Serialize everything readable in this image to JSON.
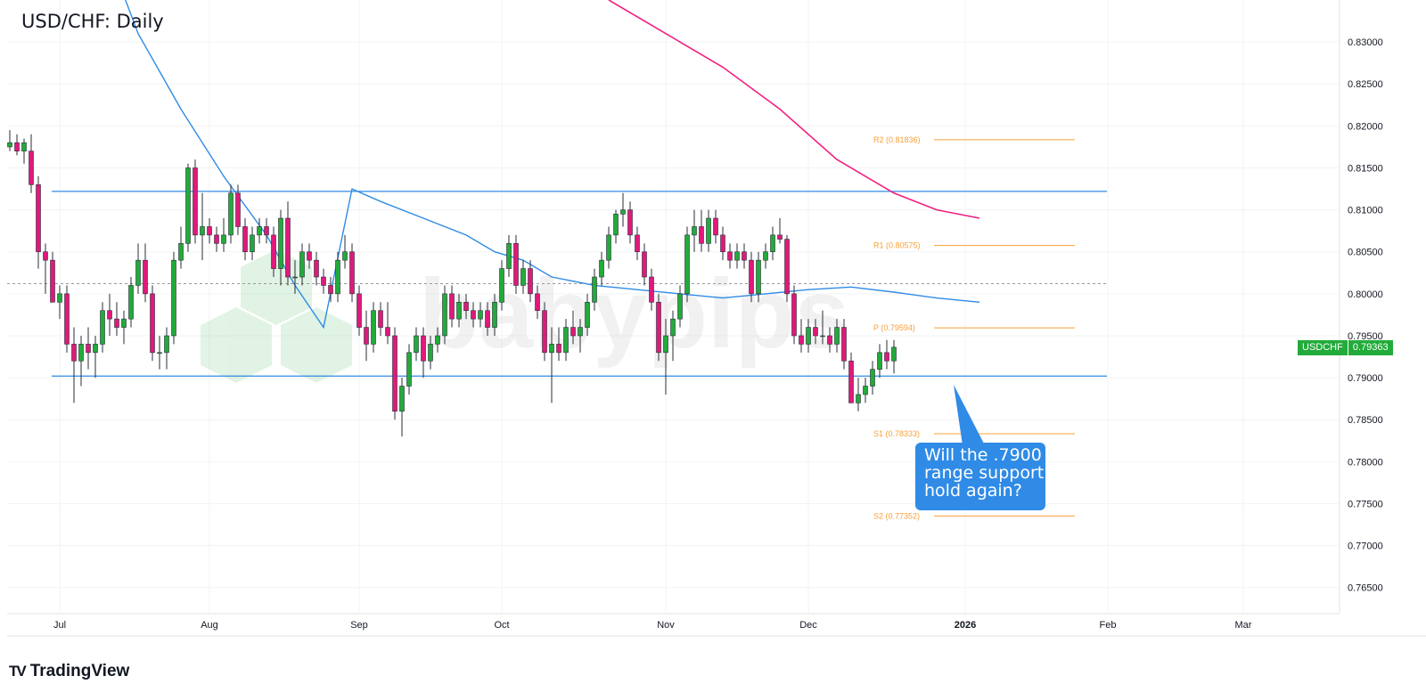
{
  "header": {
    "title": "USD/CHF: Daily"
  },
  "callout": {
    "line1": "Will the .7900",
    "line2": "range support",
    "line3": "hold again?"
  },
  "price_tag": {
    "symbol": "USDCHF",
    "value": "0.79363"
  },
  "footer": {
    "brand": "TradingView",
    "logo": "TV"
  },
  "colors": {
    "bull": "#22ab3a",
    "bear": "#e0197a",
    "ma_blue": "#2f8be6",
    "ma_pink": "#f2207e",
    "range": "#2f8be6",
    "pivot": "#f7a03a",
    "grid": "#f2f3f5",
    "axis_text": "#131722"
  },
  "chart_data": {
    "type": "candlestick",
    "title": "USD/CHF: Daily",
    "y_ticks": [
      "0.83000",
      "0.82500",
      "0.82000",
      "0.81500",
      "0.81000",
      "0.80500",
      "0.80000",
      "0.79500",
      "0.79000",
      "0.78500",
      "0.78000",
      "0.77500",
      "0.77000",
      "0.76500"
    ],
    "x_ticks": [
      {
        "label": "Jul",
        "bold": false,
        "index": 7
      },
      {
        "label": "Aug",
        "bold": false,
        "index": 28
      },
      {
        "label": "Sep",
        "bold": false,
        "index": 49
      },
      {
        "label": "Oct",
        "bold": false,
        "index": 69
      },
      {
        "label": "Nov",
        "bold": false,
        "index": 92
      },
      {
        "label": "Dec",
        "bold": false,
        "index": 112
      },
      {
        "label": "2026",
        "bold": true,
        "index": 134
      },
      {
        "label": "Feb",
        "bold": false,
        "index": 154
      },
      {
        "label": "Mar",
        "bold": false,
        "index": 173
      }
    ],
    "ylim": [
      0.762,
      0.835
    ],
    "candles": [
      [
        0.8175,
        0.8195,
        0.817,
        0.818
      ],
      [
        0.818,
        0.819,
        0.8165,
        0.817
      ],
      [
        0.817,
        0.8185,
        0.8155,
        0.818
      ],
      [
        0.817,
        0.819,
        0.812,
        0.813
      ],
      [
        0.813,
        0.814,
        0.803,
        0.805
      ],
      [
        0.805,
        0.806,
        0.8,
        0.804
      ],
      [
        0.804,
        0.805,
        0.799,
        0.799
      ],
      [
        0.799,
        0.801,
        0.797,
        0.8
      ],
      [
        0.8,
        0.801,
        0.793,
        0.794
      ],
      [
        0.794,
        0.796,
        0.787,
        0.792
      ],
      [
        0.792,
        0.795,
        0.789,
        0.794
      ],
      [
        0.794,
        0.796,
        0.791,
        0.793
      ],
      [
        0.793,
        0.795,
        0.79,
        0.794
      ],
      [
        0.794,
        0.799,
        0.793,
        0.798
      ],
      [
        0.798,
        0.8,
        0.795,
        0.797
      ],
      [
        0.797,
        0.799,
        0.795,
        0.796
      ],
      [
        0.796,
        0.798,
        0.794,
        0.797
      ],
      [
        0.797,
        0.802,
        0.796,
        0.801
      ],
      [
        0.801,
        0.806,
        0.8,
        0.804
      ],
      [
        0.804,
        0.806,
        0.799,
        0.8
      ],
      [
        0.8,
        0.801,
        0.792,
        0.793
      ],
      [
        0.793,
        0.795,
        0.791,
        0.793
      ],
      [
        0.793,
        0.796,
        0.791,
        0.795
      ],
      [
        0.795,
        0.805,
        0.794,
        0.804
      ],
      [
        0.804,
        0.808,
        0.803,
        0.806
      ],
      [
        0.806,
        0.8155,
        0.805,
        0.815
      ],
      [
        0.815,
        0.816,
        0.806,
        0.807
      ],
      [
        0.807,
        0.812,
        0.804,
        0.808
      ],
      [
        0.808,
        0.809,
        0.806,
        0.807
      ],
      [
        0.807,
        0.808,
        0.805,
        0.806
      ],
      [
        0.806,
        0.809,
        0.805,
        0.807
      ],
      [
        0.807,
        0.813,
        0.806,
        0.812
      ],
      [
        0.812,
        0.813,
        0.807,
        0.808
      ],
      [
        0.808,
        0.809,
        0.804,
        0.805
      ],
      [
        0.805,
        0.808,
        0.804,
        0.807
      ],
      [
        0.807,
        0.809,
        0.806,
        0.808
      ],
      [
        0.808,
        0.809,
        0.806,
        0.807
      ],
      [
        0.807,
        0.808,
        0.802,
        0.803
      ],
      [
        0.803,
        0.81,
        0.801,
        0.809
      ],
      [
        0.809,
        0.811,
        0.801,
        0.802
      ],
      [
        0.802,
        0.804,
        0.8,
        0.802
      ],
      [
        0.802,
        0.806,
        0.801,
        0.805
      ],
      [
        0.805,
        0.806,
        0.803,
        0.804
      ],
      [
        0.804,
        0.805,
        0.801,
        0.802
      ],
      [
        0.802,
        0.803,
        0.8,
        0.801
      ],
      [
        0.801,
        0.802,
        0.799,
        0.8
      ],
      [
        0.8,
        0.805,
        0.799,
        0.804
      ],
      [
        0.804,
        0.807,
        0.803,
        0.805
      ],
      [
        0.805,
        0.806,
        0.799,
        0.8
      ],
      [
        0.8,
        0.801,
        0.795,
        0.796
      ],
      [
        0.796,
        0.798,
        0.792,
        0.794
      ],
      [
        0.794,
        0.799,
        0.793,
        0.798
      ],
      [
        0.798,
        0.799,
        0.795,
        0.796
      ],
      [
        0.796,
        0.799,
        0.794,
        0.795
      ],
      [
        0.795,
        0.796,
        0.785,
        0.786
      ],
      [
        0.786,
        0.79,
        0.783,
        0.789
      ],
      [
        0.789,
        0.794,
        0.788,
        0.793
      ],
      [
        0.793,
        0.796,
        0.792,
        0.795
      ],
      [
        0.795,
        0.796,
        0.79,
        0.792
      ],
      [
        0.792,
        0.795,
        0.791,
        0.794
      ],
      [
        0.794,
        0.796,
        0.793,
        0.795
      ],
      [
        0.795,
        0.801,
        0.794,
        0.8
      ],
      [
        0.8,
        0.801,
        0.796,
        0.797
      ],
      [
        0.797,
        0.8,
        0.796,
        0.799
      ],
      [
        0.799,
        0.8,
        0.797,
        0.798
      ],
      [
        0.798,
        0.799,
        0.796,
        0.797
      ],
      [
        0.797,
        0.799,
        0.796,
        0.798
      ],
      [
        0.798,
        0.799,
        0.795,
        0.796
      ],
      [
        0.796,
        0.8,
        0.795,
        0.799
      ],
      [
        0.799,
        0.804,
        0.798,
        0.803
      ],
      [
        0.803,
        0.807,
        0.802,
        0.806
      ],
      [
        0.806,
        0.807,
        0.8,
        0.801
      ],
      [
        0.801,
        0.804,
        0.8,
        0.803
      ],
      [
        0.803,
        0.804,
        0.799,
        0.8
      ],
      [
        0.8,
        0.801,
        0.797,
        0.798
      ],
      [
        0.798,
        0.799,
        0.792,
        0.793
      ],
      [
        0.793,
        0.796,
        0.787,
        0.794
      ],
      [
        0.794,
        0.796,
        0.792,
        0.793
      ],
      [
        0.793,
        0.797,
        0.792,
        0.796
      ],
      [
        0.796,
        0.798,
        0.794,
        0.795
      ],
      [
        0.795,
        0.797,
        0.793,
        0.796
      ],
      [
        0.796,
        0.8,
        0.795,
        0.799
      ],
      [
        0.799,
        0.803,
        0.798,
        0.802
      ],
      [
        0.802,
        0.805,
        0.801,
        0.804
      ],
      [
        0.804,
        0.808,
        0.803,
        0.807
      ],
      [
        0.807,
        0.81,
        0.806,
        0.8095
      ],
      [
        0.8095,
        0.812,
        0.808,
        0.81
      ],
      [
        0.81,
        0.811,
        0.806,
        0.807
      ],
      [
        0.807,
        0.808,
        0.804,
        0.805
      ],
      [
        0.805,
        0.806,
        0.801,
        0.802
      ],
      [
        0.802,
        0.803,
        0.798,
        0.799
      ],
      [
        0.799,
        0.8,
        0.792,
        0.793
      ],
      [
        0.793,
        0.797,
        0.788,
        0.795
      ],
      [
        0.795,
        0.798,
        0.792,
        0.797
      ],
      [
        0.797,
        0.801,
        0.796,
        0.8
      ],
      [
        0.8,
        0.808,
        0.799,
        0.807
      ],
      [
        0.807,
        0.81,
        0.805,
        0.808
      ],
      [
        0.808,
        0.81,
        0.805,
        0.806
      ],
      [
        0.806,
        0.81,
        0.805,
        0.809
      ],
      [
        0.809,
        0.81,
        0.806,
        0.807
      ],
      [
        0.807,
        0.808,
        0.804,
        0.805
      ],
      [
        0.805,
        0.806,
        0.803,
        0.804
      ],
      [
        0.804,
        0.806,
        0.803,
        0.805
      ],
      [
        0.805,
        0.806,
        0.803,
        0.804
      ],
      [
        0.804,
        0.805,
        0.799,
        0.8
      ],
      [
        0.8,
        0.805,
        0.799,
        0.804
      ],
      [
        0.804,
        0.806,
        0.803,
        0.805
      ],
      [
        0.805,
        0.808,
        0.804,
        0.807
      ],
      [
        0.807,
        0.809,
        0.806,
        0.8065
      ],
      [
        0.8065,
        0.807,
        0.799,
        0.8
      ],
      [
        0.8,
        0.801,
        0.794,
        0.795
      ],
      [
        0.795,
        0.797,
        0.793,
        0.794
      ],
      [
        0.794,
        0.797,
        0.793,
        0.796
      ],
      [
        0.796,
        0.797,
        0.794,
        0.795
      ],
      [
        0.795,
        0.798,
        0.794,
        0.795
      ],
      [
        0.795,
        0.796,
        0.793,
        0.794
      ],
      [
        0.794,
        0.797,
        0.793,
        0.796
      ],
      [
        0.796,
        0.797,
        0.791,
        0.792
      ],
      [
        0.792,
        0.793,
        0.787,
        0.787
      ],
      [
        0.787,
        0.79,
        0.786,
        0.788
      ],
      [
        0.788,
        0.79,
        0.787,
        0.789
      ],
      [
        0.789,
        0.792,
        0.788,
        0.791
      ],
      [
        0.791,
        0.794,
        0.79,
        0.793
      ],
      [
        0.793,
        0.7945,
        0.791,
        0.792
      ],
      [
        0.792,
        0.7945,
        0.7905,
        0.79363
      ]
    ],
    "sma_blue": [
      [
        14,
        0.84
      ],
      [
        18,
        0.831
      ],
      [
        24,
        0.822
      ],
      [
        30,
        0.814
      ],
      [
        36,
        0.807
      ],
      [
        40,
        0.801
      ],
      [
        44,
        0.796
      ],
      [
        48,
        0.8125
      ],
      [
        52,
        0.811
      ],
      [
        58,
        0.809
      ],
      [
        64,
        0.807
      ],
      [
        68,
        0.805
      ],
      [
        72,
        0.804
      ],
      [
        76,
        0.802
      ],
      [
        82,
        0.801
      ],
      [
        88,
        0.8005
      ],
      [
        94,
        0.8
      ],
      [
        100,
        0.7995
      ],
      [
        106,
        0.8
      ],
      [
        112,
        0.8005
      ],
      [
        118,
        0.8008
      ],
      [
        124,
        0.8002
      ],
      [
        130,
        0.7995
      ],
      [
        136,
        0.799
      ]
    ],
    "sma_pink": [
      [
        84,
        0.835
      ],
      [
        92,
        0.831
      ],
      [
        100,
        0.827
      ],
      [
        108,
        0.822
      ],
      [
        116,
        0.816
      ],
      [
        124,
        0.812
      ],
      [
        130,
        0.81
      ],
      [
        136,
        0.809
      ]
    ],
    "range_lines": [
      {
        "price": 0.8122,
        "x_from": 0,
        "x_to": 1242
      },
      {
        "price": 0.7902,
        "x_from": 0,
        "x_to": 1242
      }
    ],
    "mid_line": 0.8012,
    "pivots": [
      {
        "label": "R2 (0.81836)",
        "price": 0.81836
      },
      {
        "label": "R1 (0.80575)",
        "price": 0.80575
      },
      {
        "label": "P (0.79594)",
        "price": 0.79594
      },
      {
        "label": "S1 (0.78333)",
        "price": 0.78333
      },
      {
        "label": "S2 (0.77352)",
        "price": 0.77352
      }
    ],
    "last_price": 0.79363,
    "grid": true
  }
}
